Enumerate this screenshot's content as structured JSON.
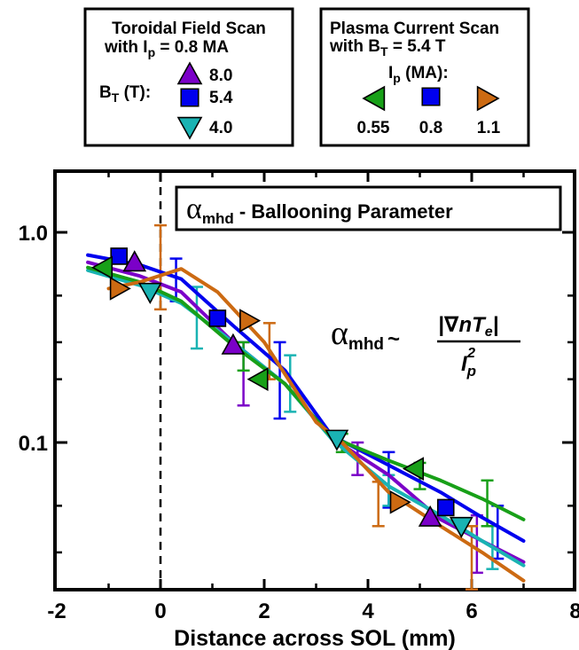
{
  "legend_left": {
    "title_line1": "Toroidal Field Scan",
    "title_line2_prefix": "with I",
    "title_line2_sub": "p",
    "title_line2_suffix": " = 0.8 MA",
    "group_label_main": "B",
    "group_label_sub": "T",
    "group_label_suffix": " (T):",
    "entries": [
      "8.0",
      "5.4",
      "4.0"
    ]
  },
  "legend_right": {
    "title_line1": "Plasma Current Scan",
    "title_line2_prefix": "with B",
    "title_line2_sub": "T",
    "title_line2_suffix": " = 5.4 T",
    "group_label_main": "I",
    "group_label_sub": "p",
    "group_label_suffix": " (MA):",
    "entries": [
      "0.55",
      "0.8",
      "1.1"
    ]
  },
  "plot_title": {
    "alpha": "α",
    "sub": "mhd",
    "rest": " - Ballooning Parameter"
  },
  "formula": {
    "alpha": "α",
    "sub": "mhd",
    "tilde": "~",
    "numerator": "|∇nT",
    "numerator_sub": "e",
    "numerator_end": "|",
    "denominator": "I",
    "denominator_sub": "p",
    "denominator_sup": "2"
  },
  "chart_data": {
    "type": "line",
    "xlabel": "Distance across SOL (mm)",
    "ylabel": "",
    "xlim": [
      -2,
      8
    ],
    "ylim": [
      0.02,
      2.0
    ],
    "yscale": "log",
    "xticks": [
      -2,
      0,
      2,
      4,
      6,
      8
    ],
    "xtick_labels": [
      "-2",
      "0",
      "2",
      "4",
      "6",
      "8"
    ],
    "yticks": [
      0.1,
      1.0
    ],
    "ytick_labels": [
      "0.1",
      "1.0"
    ],
    "reference_line_x": 0,
    "series": [
      {
        "name": "8.0",
        "color": "#7B00C8",
        "marker": "triangle-up",
        "line": [
          [
            -1.4,
            0.72
          ],
          [
            -0.4,
            0.62
          ],
          [
            0.4,
            0.52
          ],
          [
            1.4,
            0.3
          ],
          [
            2.4,
            0.19
          ],
          [
            3.3,
            0.105
          ],
          [
            4.4,
            0.07
          ],
          [
            5.4,
            0.043
          ],
          [
            6.2,
            0.034
          ],
          [
            7.0,
            0.027
          ]
        ],
        "points": [
          {
            "x": -0.5,
            "y": 0.72
          },
          {
            "x": 1.4,
            "y": 0.29
          },
          {
            "x": 5.2,
            "y": 0.044
          }
        ],
        "errorbars": [
          {
            "x": 1.6,
            "lo": 0.15,
            "hi": 0.3
          },
          {
            "x": 3.8,
            "lo": 0.07,
            "hi": 0.1
          },
          {
            "x": 6.1,
            "lo": 0.024,
            "hi": 0.045
          }
        ]
      },
      {
        "name": "5.4 / 0.8",
        "color": "#0000EE",
        "marker": "square",
        "line": [
          [
            -1.4,
            0.78
          ],
          [
            -0.4,
            0.7
          ],
          [
            0.4,
            0.6
          ],
          [
            1.4,
            0.36
          ],
          [
            2.4,
            0.22
          ],
          [
            3.3,
            0.108
          ],
          [
            4.4,
            0.078
          ],
          [
            5.4,
            0.058
          ],
          [
            6.2,
            0.044
          ],
          [
            7.0,
            0.034
          ]
        ],
        "points": [
          {
            "x": -0.8,
            "y": 0.77
          },
          {
            "x": 1.1,
            "y": 0.39
          },
          {
            "x": 5.5,
            "y": 0.049
          }
        ],
        "errorbars": [
          {
            "x": 0.3,
            "lo": 0.47,
            "hi": 0.75
          },
          {
            "x": 2.3,
            "lo": 0.13,
            "hi": 0.3
          },
          {
            "x": 4.4,
            "lo": 0.049,
            "hi": 0.09
          },
          {
            "x": 6.5,
            "lo": 0.028,
            "hi": 0.05
          }
        ]
      },
      {
        "name": "4.0",
        "color": "#1AB3B3",
        "marker": "triangle-down",
        "line": [
          [
            -1.4,
            0.66
          ],
          [
            -0.4,
            0.56
          ],
          [
            0.4,
            0.46
          ],
          [
            1.4,
            0.3
          ],
          [
            2.4,
            0.19
          ],
          [
            3.3,
            0.104
          ],
          [
            4.4,
            0.062
          ],
          [
            5.4,
            0.045
          ],
          [
            6.2,
            0.034
          ],
          [
            7.0,
            0.026
          ]
        ],
        "points": [
          {
            "x": -0.2,
            "y": 0.52
          },
          {
            "x": 3.4,
            "y": 0.104
          },
          {
            "x": 5.8,
            "y": 0.04
          }
        ],
        "errorbars": [
          {
            "x": 0.7,
            "lo": 0.28,
            "hi": 0.55
          },
          {
            "x": 2.5,
            "lo": 0.14,
            "hi": 0.26
          },
          {
            "x": 4.4,
            "lo": 0.05,
            "hi": 0.07
          },
          {
            "x": 6.4,
            "lo": 0.025,
            "hi": 0.04
          }
        ]
      },
      {
        "name": "0.55",
        "color": "#18A018",
        "marker": "triangle-left",
        "line": [
          [
            -1.4,
            0.68
          ],
          [
            -0.4,
            0.58
          ],
          [
            0.4,
            0.47
          ],
          [
            1.4,
            0.29
          ],
          [
            2.4,
            0.19
          ],
          [
            3.3,
            0.106
          ],
          [
            4.4,
            0.082
          ],
          [
            5.4,
            0.066
          ],
          [
            6.2,
            0.054
          ],
          [
            7.0,
            0.043
          ]
        ],
        "points": [
          {
            "x": -1.1,
            "y": 0.68
          },
          {
            "x": 1.9,
            "y": 0.2
          },
          {
            "x": 4.9,
            "y": 0.075
          }
        ],
        "errorbars": [
          {
            "x": 1.6,
            "lo": 0.22,
            "hi": 0.3
          },
          {
            "x": 3.5,
            "lo": 0.09,
            "hi": 0.11
          },
          {
            "x": 5.0,
            "lo": 0.06,
            "hi": 0.08
          },
          {
            "x": 6.3,
            "lo": 0.04,
            "hi": 0.066
          }
        ]
      },
      {
        "name": "1.1",
        "color": "#CC6A12",
        "marker": "triangle-right",
        "line": [
          [
            -1.0,
            0.54
          ],
          [
            -0.4,
            0.58
          ],
          [
            0.4,
            0.67
          ],
          [
            1.1,
            0.52
          ],
          [
            2.0,
            0.3
          ],
          [
            3.0,
            0.125
          ],
          [
            3.5,
            0.1
          ],
          [
            4.4,
            0.058
          ],
          [
            5.4,
            0.04
          ],
          [
            6.2,
            0.03
          ],
          [
            7.0,
            0.022
          ]
        ],
        "points": [
          {
            "x": -0.8,
            "y": 0.54
          },
          {
            "x": 1.7,
            "y": 0.38
          },
          {
            "x": 4.6,
            "y": 0.052
          }
        ],
        "errorbars": [
          {
            "x": 0.0,
            "lo": 0.43,
            "hi": 1.08
          },
          {
            "x": 2.1,
            "lo": 0.2,
            "hi": 0.37
          },
          {
            "x": 4.2,
            "lo": 0.04,
            "hi": 0.065
          },
          {
            "x": 6.0,
            "lo": 0.02,
            "hi": 0.04
          }
        ]
      }
    ]
  }
}
